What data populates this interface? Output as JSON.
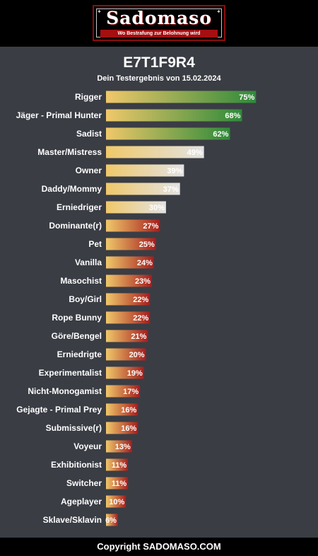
{
  "header": {
    "logo_text": "Sadomaso",
    "logo_tagline": "Wo Bestrafung zur Belohnung wird"
  },
  "title": "E7T1F9R4",
  "subtitle": "Dein Testergebnis von 15.02.2024",
  "footer": "Copyright SADOMASO.COM",
  "colors": {
    "background": "#3a3d44",
    "bar_start": "#f0c86a",
    "high_end": "#2f8a3a",
    "mid_end": "#e2e2e2",
    "low_end": "#a41d1d"
  },
  "chart_data": {
    "type": "bar",
    "orientation": "horizontal",
    "unit": "%",
    "xlim": [
      0,
      100
    ],
    "categories": [
      "Rigger",
      "Jäger - Primal Hunter",
      "Sadist",
      "Master/Mistress",
      "Owner",
      "Daddy/Mommy",
      "Erniedriger",
      "Dominante(r)",
      "Pet",
      "Vanilla",
      "Masochist",
      "Boy/Girl",
      "Rope Bunny",
      "Göre/Bengel",
      "Erniedrigte",
      "Experimentalist",
      "Nicht-Monogamist",
      "Gejagte - Primal Prey",
      "Submissive(r)",
      "Voyeur",
      "Exhibitionist",
      "Switcher",
      "Ageplayer",
      "Sklave/Sklavin"
    ],
    "values": [
      75,
      68,
      62,
      49,
      39,
      37,
      30,
      27,
      25,
      24,
      23,
      22,
      22,
      21,
      20,
      19,
      17,
      16,
      16,
      13,
      11,
      11,
      10,
      6
    ],
    "labels": [
      "75%",
      "68%",
      "62%",
      "49%",
      "39%",
      "37%",
      "30%",
      "27%",
      "25%",
      "24%",
      "23%",
      "22%",
      "22%",
      "21%",
      "20%",
      "19%",
      "17%",
      "16%",
      "16%",
      "13%",
      "11%",
      "11%",
      "10%",
      "6%"
    ]
  }
}
